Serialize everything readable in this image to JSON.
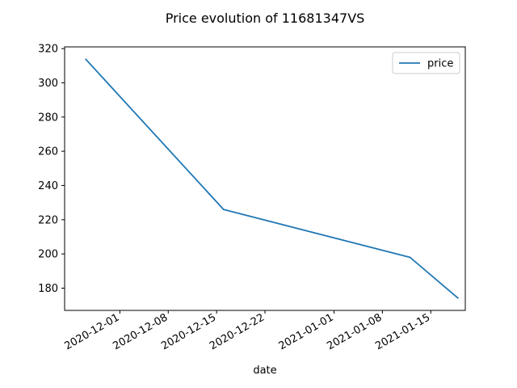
{
  "chart_data": {
    "type": "line",
    "title": "Price evolution of 11681347VS",
    "xlabel": "date",
    "ylabel": "",
    "x_axis_type": "date",
    "xlim": [
      "2020-11-23",
      "2021-01-20"
    ],
    "ylim": [
      167,
      321
    ],
    "xticks": [
      "2020-12-01",
      "2020-12-08",
      "2020-12-15",
      "2020-12-22",
      "2021-01-01",
      "2021-01-08",
      "2021-01-15"
    ],
    "yticks": [
      180,
      200,
      220,
      240,
      260,
      280,
      300,
      320
    ],
    "grid": false,
    "legend_position": "top-right",
    "series": [
      {
        "name": "price",
        "color": "#1f77b4",
        "points": [
          {
            "x": "2020-11-26",
            "y": 314
          },
          {
            "x": "2020-12-16",
            "y": 226
          },
          {
            "x": "2021-01-12",
            "y": 198
          },
          {
            "x": "2021-01-19",
            "y": 174
          }
        ]
      }
    ]
  }
}
